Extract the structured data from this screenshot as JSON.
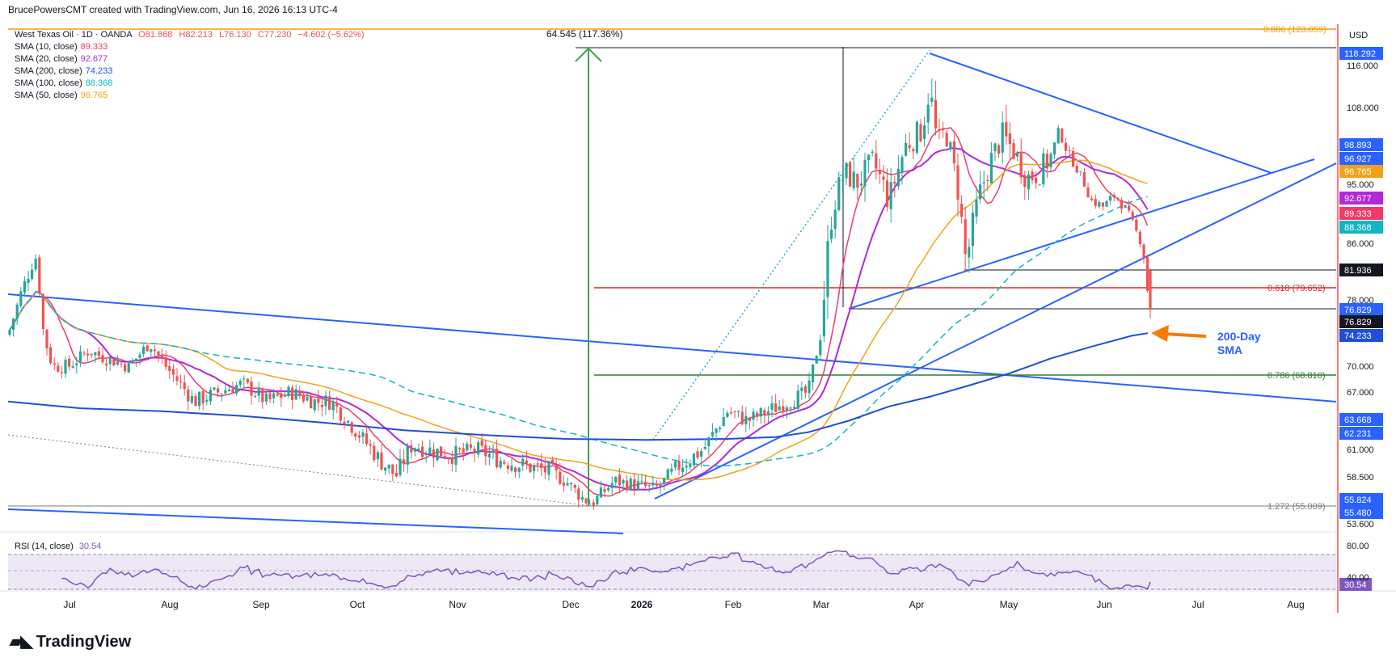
{
  "header": {
    "attribution": "BrucePowersCMT created with TradingView.com, Jun 16, 2026 16:13 UTC-4"
  },
  "symbol": {
    "name": "West Texas Oil · 1D · OANDA",
    "open": "O81.868",
    "high": "H82.213",
    "low": "L76.130",
    "close": "C77.230",
    "change": "−4.602 (−5.62%)"
  },
  "indicators": [
    {
      "label": "SMA (10, close)",
      "value": "89.333",
      "color": "#f23a6a"
    },
    {
      "label": "SMA (20, close)",
      "value": "92.677",
      "color": "#b02ad6"
    },
    {
      "label": "SMA (200, close)",
      "value": "74.233",
      "color": "#1f4fd8"
    },
    {
      "label": "SMA (100, close)",
      "value": "88.368",
      "color": "#11b5c4"
    },
    {
      "label": "SMA (50, close)",
      "value": "96.765",
      "color": "#f2a21a"
    }
  ],
  "currency": "USD",
  "colors": {
    "up": "#26a69a",
    "down": "#ef5350",
    "trendline": "#2962ff",
    "fib_red": "#e02828",
    "fib_green": "#2e7d32",
    "fib_orange": "#ff9800",
    "measure": "#43a047",
    "rsi": "#7e57c2",
    "annotation": "#f57c00"
  },
  "chart_data": {
    "type": "candlestick",
    "symbol": "West Texas Oil",
    "timeframe": "1D",
    "x_labels": [
      "Jul",
      "Aug",
      "Sep",
      "Oct",
      "Nov",
      "Dec",
      "2026",
      "Feb",
      "Mar",
      "Apr",
      "May",
      "Jun",
      "Jul",
      "Aug"
    ],
    "y_ticks": [
      116.0,
      108.0,
      95.0,
      86.0,
      78.0,
      70.0,
      67.0,
      61.0,
      58.5,
      53.6
    ],
    "ylim": [
      51.5,
      125.5
    ],
    "price_badges": [
      {
        "value": "118.292",
        "color": "#2962ff"
      },
      {
        "value": "98.893",
        "color": "#2962ff"
      },
      {
        "value": "96.927",
        "color": "#2962ff"
      },
      {
        "value": "96.765",
        "color": "#f2a21a"
      },
      {
        "value": "92.677",
        "color": "#b02ad6"
      },
      {
        "value": "89.333",
        "color": "#f23a6a"
      },
      {
        "value": "88.368",
        "color": "#11b5c4"
      },
      {
        "value": "81.936",
        "color": "#131722"
      },
      {
        "value": "76.829",
        "color": "#2962ff"
      },
      {
        "value": "76.829",
        "color": "#131722"
      },
      {
        "value": "74.233",
        "color": "#1f4fd8"
      },
      {
        "value": "63.668",
        "color": "#2962ff"
      },
      {
        "value": "62.231",
        "color": "#2962ff"
      },
      {
        "value": "55.824",
        "color": "#2962ff"
      },
      {
        "value": "55.480",
        "color": "#2962ff"
      }
    ],
    "fib_levels": [
      {
        "label": "0.886 (123.059)",
        "value": 123.059,
        "color": "#ff9800"
      },
      {
        "label": "0.618 (79.652)",
        "value": 79.652,
        "color": "#e02828"
      },
      {
        "label": "0.786 (68.810)",
        "value": 68.81,
        "color": "#2e7d32"
      },
      {
        "label": "1.272 (55.009)",
        "value": 55.009,
        "color": "#787b86"
      }
    ],
    "measure": {
      "label": "64.545 (117.36%)"
    },
    "annotation": {
      "label_line1": "200-Day",
      "label_line2": "SMA"
    },
    "rsi": {
      "label": "RSI (14, close)",
      "value": "30.54",
      "ticks": [
        80.0,
        40.0
      ],
      "band": [
        70,
        30
      ],
      "ylim": [
        20,
        90
      ]
    }
  }
}
